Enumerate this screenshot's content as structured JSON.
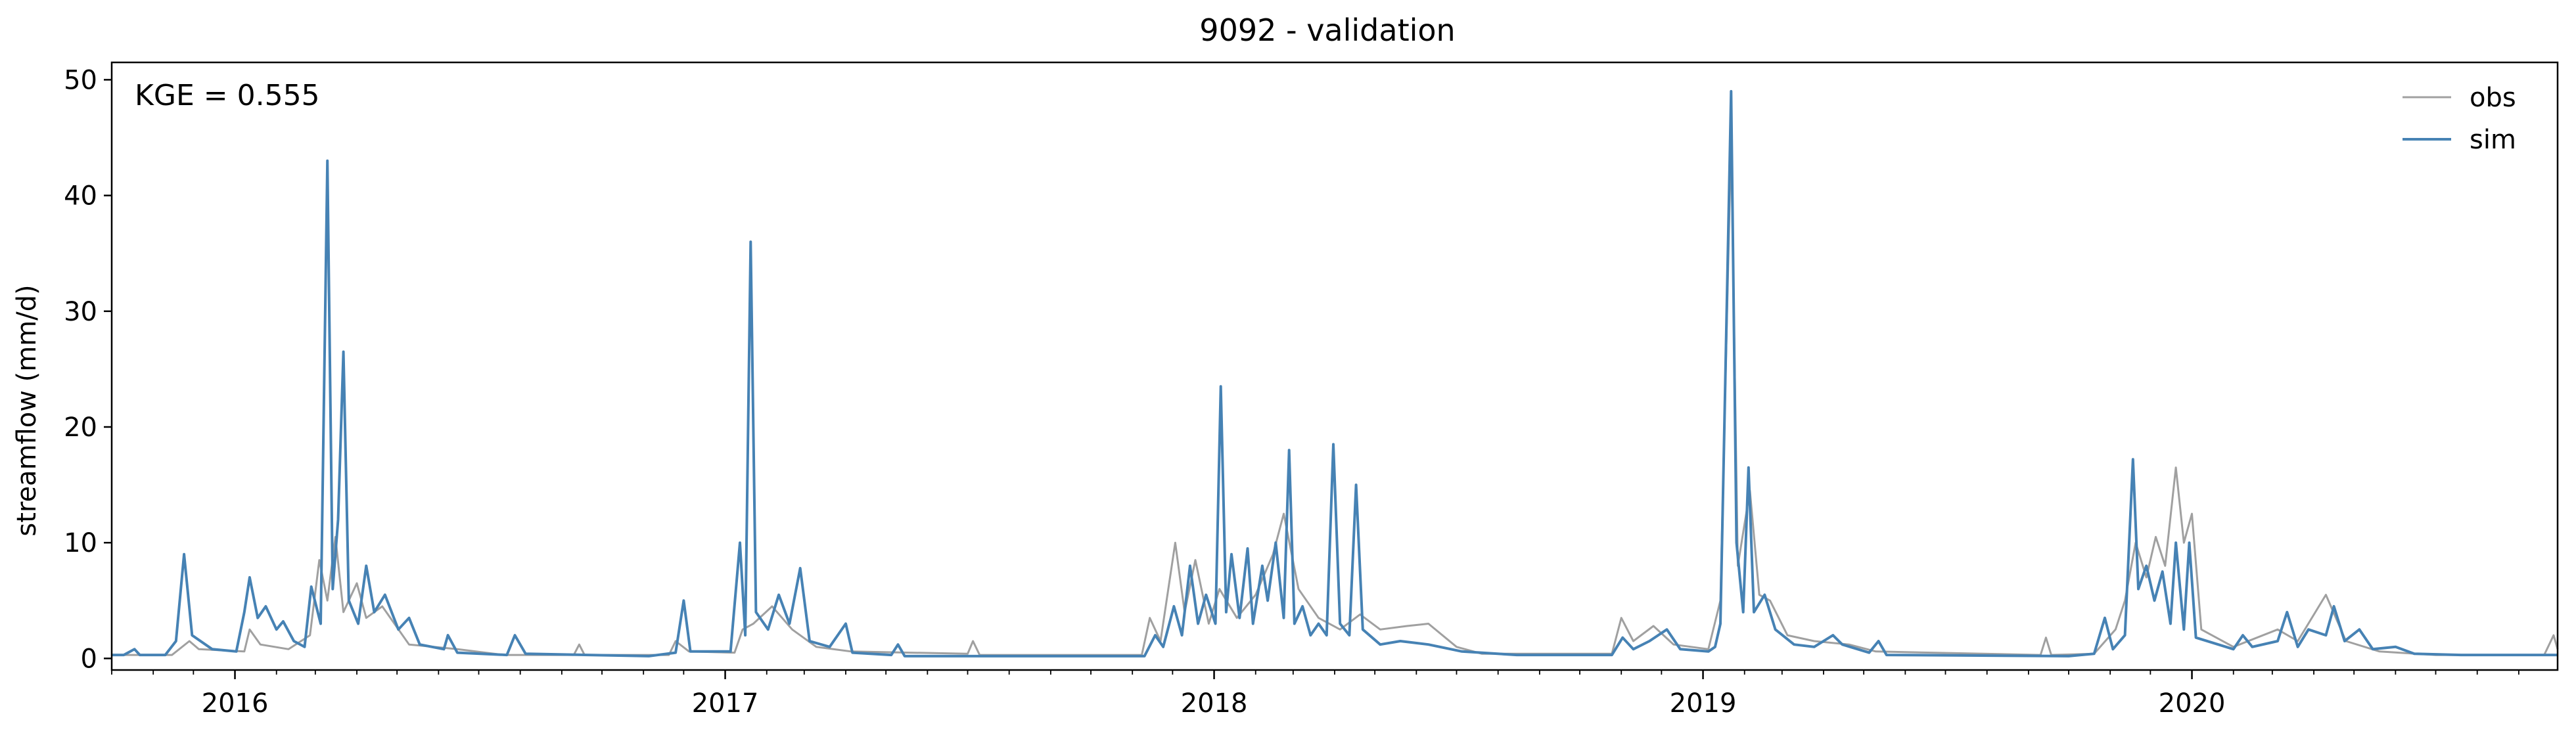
{
  "chart_data": {
    "type": "line",
    "title": "9092 - validation",
    "xlabel": "",
    "ylabel": "streamflow (mm/d)",
    "annotation": "KGE = 0.555",
    "xlim": [
      "2015-10-01",
      "2020-09-30"
    ],
    "ylim": [
      -1,
      51.5
    ],
    "yticks": [
      0,
      10,
      20,
      30,
      40,
      50
    ],
    "xticks": [
      {
        "date": "2016-01-01",
        "label": "2016"
      },
      {
        "date": "2017-01-01",
        "label": "2017"
      },
      {
        "date": "2018-01-01",
        "label": "2018"
      },
      {
        "date": "2019-01-01",
        "label": "2019"
      },
      {
        "date": "2020-01-01",
        "label": "2020"
      }
    ],
    "grid": false,
    "legend": {
      "position": "top-right"
    },
    "series": [
      {
        "name": "obs",
        "color": "#a0a0a0",
        "points": [
          [
            "2015-10-01",
            0.3
          ],
          [
            "2015-11-15",
            0.3
          ],
          [
            "2015-11-28",
            1.5
          ],
          [
            "2015-12-05",
            0.8
          ],
          [
            "2016-01-08",
            0.6
          ],
          [
            "2016-01-12",
            2.5
          ],
          [
            "2016-01-20",
            1.2
          ],
          [
            "2016-02-10",
            0.8
          ],
          [
            "2016-02-26",
            2.0
          ],
          [
            "2016-03-04",
            8.5
          ],
          [
            "2016-03-10",
            5.0
          ],
          [
            "2016-03-16",
            10.5
          ],
          [
            "2016-03-22",
            4.0
          ],
          [
            "2016-04-01",
            6.5
          ],
          [
            "2016-04-08",
            3.5
          ],
          [
            "2016-04-20",
            4.5
          ],
          [
            "2016-05-10",
            1.2
          ],
          [
            "2016-06-15",
            0.8
          ],
          [
            "2016-07-20",
            0.3
          ],
          [
            "2016-09-10",
            0.3
          ],
          [
            "2016-09-14",
            1.2
          ],
          [
            "2016-09-18",
            0.3
          ],
          [
            "2016-11-20",
            0.3
          ],
          [
            "2016-11-25",
            1.5
          ],
          [
            "2016-12-05",
            0.6
          ],
          [
            "2017-01-08",
            0.5
          ],
          [
            "2017-01-14",
            2.5
          ],
          [
            "2017-01-22",
            3.0
          ],
          [
            "2017-02-05",
            4.5
          ],
          [
            "2017-02-20",
            2.5
          ],
          [
            "2017-03-10",
            1.0
          ],
          [
            "2017-04-05",
            0.6
          ],
          [
            "2017-07-01",
            0.4
          ],
          [
            "2017-07-05",
            1.5
          ],
          [
            "2017-07-10",
            0.3
          ],
          [
            "2017-11-08",
            0.3
          ],
          [
            "2017-11-14",
            3.5
          ],
          [
            "2017-11-22",
            1.5
          ],
          [
            "2017-12-03",
            10.0
          ],
          [
            "2017-12-10",
            4.0
          ],
          [
            "2017-12-18",
            8.5
          ],
          [
            "2017-12-28",
            3.0
          ],
          [
            "2018-01-05",
            6.0
          ],
          [
            "2018-01-18",
            3.5
          ],
          [
            "2018-02-01",
            5.5
          ],
          [
            "2018-02-14",
            9.0
          ],
          [
            "2018-02-22",
            12.5
          ],
          [
            "2018-03-05",
            6.0
          ],
          [
            "2018-03-20",
            3.5
          ],
          [
            "2018-04-05",
            2.5
          ],
          [
            "2018-04-20",
            3.8
          ],
          [
            "2018-05-05",
            2.5
          ],
          [
            "2018-05-25",
            2.8
          ],
          [
            "2018-06-10",
            3.0
          ],
          [
            "2018-07-01",
            1.0
          ],
          [
            "2018-07-20",
            0.4
          ],
          [
            "2018-10-25",
            0.4
          ],
          [
            "2018-11-01",
            3.5
          ],
          [
            "2018-11-10",
            1.5
          ],
          [
            "2018-11-25",
            2.8
          ],
          [
            "2018-12-10",
            1.2
          ],
          [
            "2019-01-05",
            0.8
          ],
          [
            "2019-01-14",
            5.0
          ],
          [
            "2019-01-22",
            45.0
          ],
          [
            "2019-01-27",
            8.0
          ],
          [
            "2019-02-05",
            14.5
          ],
          [
            "2019-02-12",
            5.5
          ],
          [
            "2019-02-20",
            5.0
          ],
          [
            "2019-03-05",
            2.0
          ],
          [
            "2019-03-25",
            1.5
          ],
          [
            "2019-04-20",
            1.2
          ],
          [
            "2019-05-10",
            0.6
          ],
          [
            "2019-09-10",
            0.3
          ],
          [
            "2019-09-14",
            1.8
          ],
          [
            "2019-09-18",
            0.3
          ],
          [
            "2019-10-20",
            0.4
          ],
          [
            "2019-11-05",
            2.5
          ],
          [
            "2019-11-12",
            5.0
          ],
          [
            "2019-11-20",
            10.0
          ],
          [
            "2019-11-28",
            7.0
          ],
          [
            "2019-12-05",
            10.5
          ],
          [
            "2019-12-12",
            8.0
          ],
          [
            "2019-12-20",
            16.5
          ],
          [
            "2019-12-26",
            10.0
          ],
          [
            "2020-01-01",
            12.5
          ],
          [
            "2020-01-08",
            2.5
          ],
          [
            "2020-02-01",
            1.0
          ],
          [
            "2020-03-05",
            2.5
          ],
          [
            "2020-03-20",
            1.5
          ],
          [
            "2020-04-10",
            5.5
          ],
          [
            "2020-04-25",
            1.5
          ],
          [
            "2020-05-20",
            0.6
          ],
          [
            "2020-07-01",
            0.3
          ],
          [
            "2020-09-20",
            0.3
          ],
          [
            "2020-09-27",
            2.0
          ],
          [
            "2020-09-30",
            0.8
          ]
        ]
      },
      {
        "name": "sim",
        "color": "#4682b4",
        "points": [
          [
            "2015-10-01",
            0.3
          ],
          [
            "2015-10-10",
            0.3
          ],
          [
            "2015-10-18",
            0.8
          ],
          [
            "2015-10-22",
            0.3
          ],
          [
            "2015-11-10",
            0.3
          ],
          [
            "2015-11-18",
            1.5
          ],
          [
            "2015-11-24",
            9.0
          ],
          [
            "2015-11-30",
            2.0
          ],
          [
            "2015-12-15",
            0.8
          ],
          [
            "2016-01-02",
            0.6
          ],
          [
            "2016-01-08",
            4.0
          ],
          [
            "2016-01-12",
            7.0
          ],
          [
            "2016-01-18",
            3.5
          ],
          [
            "2016-01-24",
            4.5
          ],
          [
            "2016-02-01",
            2.5
          ],
          [
            "2016-02-06",
            3.2
          ],
          [
            "2016-02-14",
            1.5
          ],
          [
            "2016-02-22",
            1.0
          ],
          [
            "2016-02-27",
            6.2
          ],
          [
            "2016-03-05",
            3.0
          ],
          [
            "2016-03-10",
            43.0
          ],
          [
            "2016-03-14",
            6.0
          ],
          [
            "2016-03-18",
            12.0
          ],
          [
            "2016-03-22",
            26.5
          ],
          [
            "2016-03-26",
            5.0
          ],
          [
            "2016-04-02",
            3.0
          ],
          [
            "2016-04-08",
            8.0
          ],
          [
            "2016-04-14",
            4.0
          ],
          [
            "2016-04-22",
            5.5
          ],
          [
            "2016-05-02",
            2.5
          ],
          [
            "2016-05-10",
            3.5
          ],
          [
            "2016-05-18",
            1.2
          ],
          [
            "2016-06-05",
            0.8
          ],
          [
            "2016-06-08",
            2.0
          ],
          [
            "2016-06-15",
            0.5
          ],
          [
            "2016-07-22",
            0.3
          ],
          [
            "2016-07-28",
            2.0
          ],
          [
            "2016-08-05",
            0.4
          ],
          [
            "2016-11-05",
            0.2
          ],
          [
            "2016-11-25",
            0.5
          ],
          [
            "2016-12-01",
            5.0
          ],
          [
            "2016-12-06",
            0.6
          ],
          [
            "2017-01-05",
            0.6
          ],
          [
            "2017-01-12",
            10.0
          ],
          [
            "2017-01-16",
            2.0
          ],
          [
            "2017-01-20",
            36.0
          ],
          [
            "2017-01-24",
            4.0
          ],
          [
            "2017-02-02",
            2.5
          ],
          [
            "2017-02-10",
            5.5
          ],
          [
            "2017-02-18",
            3.0
          ],
          [
            "2017-02-26",
            7.8
          ],
          [
            "2017-03-05",
            1.5
          ],
          [
            "2017-03-20",
            1.0
          ],
          [
            "2017-04-01",
            3.0
          ],
          [
            "2017-04-06",
            0.5
          ],
          [
            "2017-05-05",
            0.3
          ],
          [
            "2017-05-10",
            1.2
          ],
          [
            "2017-05-15",
            0.2
          ],
          [
            "2017-07-20",
            0.2
          ],
          [
            "2017-11-10",
            0.2
          ],
          [
            "2017-11-18",
            2.0
          ],
          [
            "2017-11-24",
            1.0
          ],
          [
            "2017-12-02",
            4.5
          ],
          [
            "2017-12-08",
            2.0
          ],
          [
            "2017-12-14",
            8.0
          ],
          [
            "2017-12-20",
            3.0
          ],
          [
            "2017-12-26",
            5.5
          ],
          [
            "2018-01-02",
            3.0
          ],
          [
            "2018-01-06",
            23.5
          ],
          [
            "2018-01-10",
            4.0
          ],
          [
            "2018-01-14",
            9.0
          ],
          [
            "2018-01-20",
            3.5
          ],
          [
            "2018-01-26",
            9.5
          ],
          [
            "2018-01-30",
            3.0
          ],
          [
            "2018-02-06",
            8.0
          ],
          [
            "2018-02-10",
            5.0
          ],
          [
            "2018-02-16",
            10.0
          ],
          [
            "2018-02-22",
            3.5
          ],
          [
            "2018-02-26",
            18.0
          ],
          [
            "2018-03-02",
            3.0
          ],
          [
            "2018-03-08",
            4.5
          ],
          [
            "2018-03-14",
            2.0
          ],
          [
            "2018-03-20",
            3.0
          ],
          [
            "2018-03-26",
            2.0
          ],
          [
            "2018-03-31",
            18.5
          ],
          [
            "2018-04-05",
            3.0
          ],
          [
            "2018-04-12",
            2.0
          ],
          [
            "2018-04-17",
            15.0
          ],
          [
            "2018-04-22",
            2.5
          ],
          [
            "2018-05-05",
            1.2
          ],
          [
            "2018-05-20",
            1.5
          ],
          [
            "2018-06-10",
            1.2
          ],
          [
            "2018-07-05",
            0.6
          ],
          [
            "2018-08-15",
            0.3
          ],
          [
            "2018-10-25",
            0.3
          ],
          [
            "2018-11-02",
            1.8
          ],
          [
            "2018-11-10",
            0.8
          ],
          [
            "2018-11-22",
            1.5
          ],
          [
            "2018-12-05",
            2.5
          ],
          [
            "2018-12-15",
            0.8
          ],
          [
            "2019-01-05",
            0.6
          ],
          [
            "2019-01-10",
            1.0
          ],
          [
            "2019-01-14",
            3.0
          ],
          [
            "2019-01-22",
            49.0
          ],
          [
            "2019-01-26",
            10.0
          ],
          [
            "2019-01-31",
            4.0
          ],
          [
            "2019-02-04",
            16.5
          ],
          [
            "2019-02-08",
            4.0
          ],
          [
            "2019-02-16",
            5.5
          ],
          [
            "2019-02-24",
            2.5
          ],
          [
            "2019-03-10",
            1.2
          ],
          [
            "2019-03-25",
            1.0
          ],
          [
            "2019-04-08",
            2.0
          ],
          [
            "2019-04-15",
            1.2
          ],
          [
            "2019-05-05",
            0.5
          ],
          [
            "2019-05-12",
            1.5
          ],
          [
            "2019-05-18",
            0.3
          ],
          [
            "2019-10-01",
            0.2
          ],
          [
            "2019-10-20",
            0.4
          ],
          [
            "2019-10-28",
            3.5
          ],
          [
            "2019-11-03",
            0.8
          ],
          [
            "2019-11-12",
            2.0
          ],
          [
            "2019-11-18",
            17.2
          ],
          [
            "2019-11-22",
            6.0
          ],
          [
            "2019-11-28",
            8.0
          ],
          [
            "2019-12-04",
            5.0
          ],
          [
            "2019-12-10",
            7.5
          ],
          [
            "2019-12-16",
            3.0
          ],
          [
            "2019-12-20",
            10.0
          ],
          [
            "2019-12-26",
            2.5
          ],
          [
            "2019-12-30",
            10.0
          ],
          [
            "2020-01-04",
            1.8
          ],
          [
            "2020-02-01",
            0.8
          ],
          [
            "2020-02-08",
            2.0
          ],
          [
            "2020-02-15",
            1.0
          ],
          [
            "2020-03-05",
            1.5
          ],
          [
            "2020-03-12",
            4.0
          ],
          [
            "2020-03-20",
            1.0
          ],
          [
            "2020-03-28",
            2.5
          ],
          [
            "2020-04-10",
            2.0
          ],
          [
            "2020-04-16",
            4.5
          ],
          [
            "2020-04-24",
            1.5
          ],
          [
            "2020-05-05",
            2.5
          ],
          [
            "2020-05-15",
            0.8
          ],
          [
            "2020-06-01",
            1.0
          ],
          [
            "2020-06-15",
            0.4
          ],
          [
            "2020-07-20",
            0.3
          ],
          [
            "2020-09-30",
            0.3
          ]
        ]
      }
    ]
  }
}
